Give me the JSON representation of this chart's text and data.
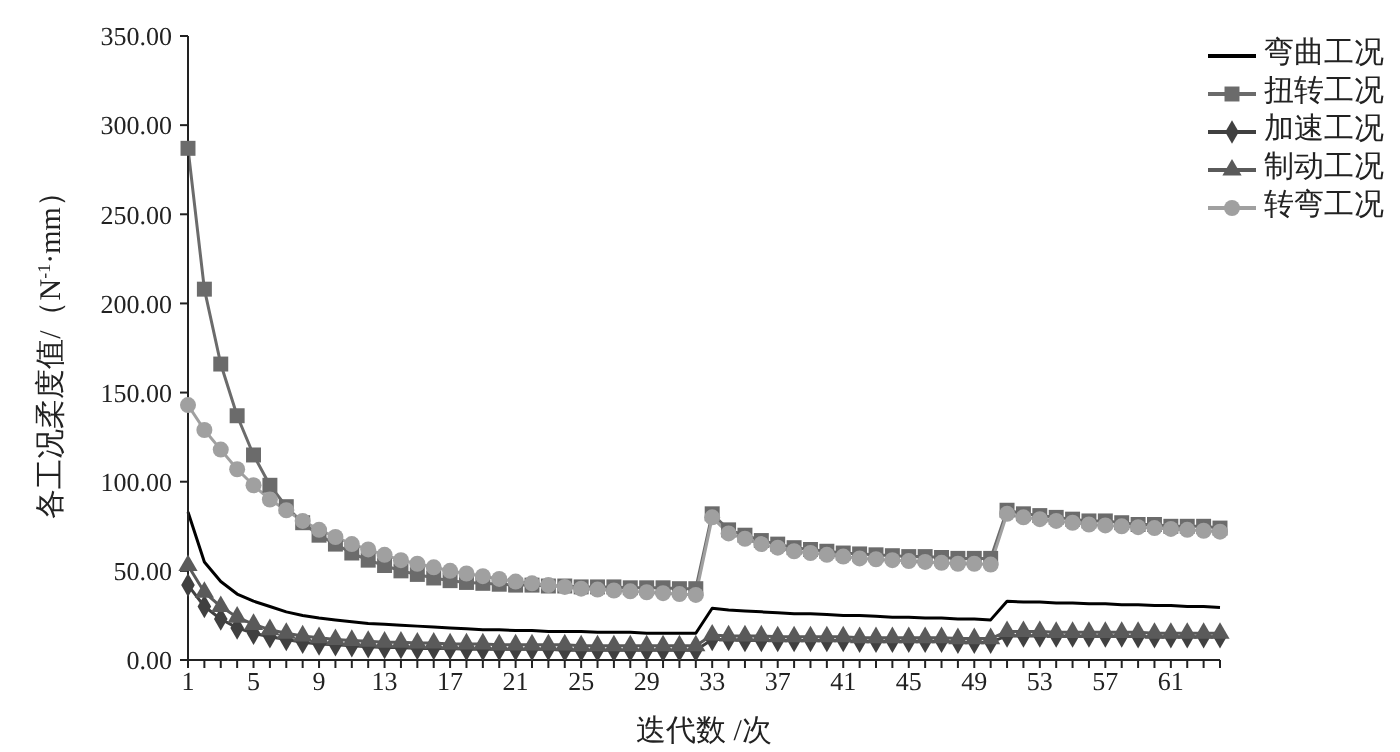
{
  "chart_data": {
    "type": "line",
    "xlabel": "迭代数 /次",
    "ylabel": "各工况柔度值/（N$^{-1}$·mm）",
    "categories": [
      "1",
      null,
      null,
      null,
      "5",
      null,
      null,
      null,
      "9",
      null,
      null,
      null,
      "13",
      null,
      null,
      null,
      "17",
      null,
      null,
      null,
      "21",
      null,
      null,
      null,
      "25",
      null,
      null,
      null,
      "29",
      null,
      null,
      null,
      "33",
      null,
      null,
      null,
      "37",
      null,
      null,
      null,
      "41",
      null,
      null,
      null,
      "45",
      null,
      null,
      null,
      "49",
      null,
      null,
      null,
      "53",
      null,
      null,
      null,
      "57",
      null,
      null,
      null,
      "61",
      null,
      null,
      null
    ],
    "ylim": [
      0,
      350
    ],
    "yticks": [
      {
        "value": 0,
        "label": "0.00"
      },
      {
        "value": 50,
        "label": "50.00"
      },
      {
        "value": 100,
        "label": "100.00"
      },
      {
        "value": 150,
        "label": "150.00"
      },
      {
        "value": 200,
        "label": "200.00"
      },
      {
        "value": 250,
        "label": "250.00"
      },
      {
        "value": 300,
        "label": "300.00"
      },
      {
        "value": 350,
        "label": "350.00"
      }
    ],
    "grid": false,
    "legend": "top right",
    "series": [
      {
        "name": "弯曲工况",
        "color": "#000000",
        "marker": "none",
        "values": [
          83,
          55,
          44,
          37,
          33,
          30,
          27,
          25,
          23.5,
          22.5,
          21.5,
          20.5,
          20,
          19.5,
          19,
          18.5,
          18,
          17.5,
          17,
          17,
          16.5,
          16.5,
          16,
          16,
          16,
          15.5,
          15.5,
          15.5,
          15,
          15,
          15,
          15,
          29,
          28,
          27.5,
          27,
          26.5,
          26,
          26,
          25.5,
          25,
          25,
          24.5,
          24,
          24,
          23.5,
          23.5,
          23,
          23,
          22.5,
          33,
          32.5,
          32.5,
          32,
          32,
          31.5,
          31.5,
          31,
          31,
          30.5,
          30.5,
          30,
          30,
          29.5
        ]
      },
      {
        "name": "扭转工况",
        "color": "#6b6b6b",
        "marker": "square",
        "values": [
          287,
          208,
          166,
          137,
          115,
          98,
          86,
          77,
          70,
          65,
          60,
          56,
          53,
          50,
          48,
          46,
          44.5,
          43.5,
          43,
          42.5,
          42,
          42,
          41.5,
          41.5,
          41,
          41,
          41,
          40.5,
          40.5,
          40.5,
          40,
          40,
          82,
          73,
          70,
          67,
          65,
          63,
          62,
          61,
          60,
          59.5,
          59,
          58.5,
          58,
          58,
          57.5,
          57,
          57,
          57,
          84,
          82,
          81,
          80,
          79,
          78,
          78,
          77,
          76,
          76,
          75,
          75,
          75,
          74
        ]
      },
      {
        "name": "加速工况",
        "color": "#404040",
        "marker": "diamond",
        "values": [
          42,
          30,
          23,
          18,
          15,
          13,
          11.5,
          10,
          9,
          8.5,
          8,
          7.5,
          7,
          7,
          6.5,
          6.5,
          6.5,
          6,
          6,
          6,
          6,
          6,
          6,
          5.5,
          5.5,
          5.5,
          5.5,
          5.5,
          5.5,
          5.5,
          5.5,
          5.5,
          11.5,
          11.5,
          11,
          11,
          11,
          11,
          11,
          11,
          11,
          10.5,
          10.5,
          10.5,
          10.5,
          10.5,
          10.5,
          10,
          10,
          10,
          13.5,
          13.5,
          13.5,
          13.5,
          13.5,
          13.5,
          13.5,
          13.5,
          13,
          13,
          13,
          13,
          13,
          13
        ]
      },
      {
        "name": "制动工况",
        "color": "#5a5a5a",
        "marker": "triangle",
        "values": [
          53,
          38,
          30,
          24,
          20,
          17,
          15,
          13.5,
          12.5,
          11.5,
          11,
          10.5,
          10,
          10,
          9.5,
          9.5,
          9,
          9,
          9,
          8.5,
          8.5,
          8.5,
          8.5,
          8.5,
          8,
          8,
          8,
          8,
          8,
          8,
          8,
          8,
          14,
          13.5,
          13.5,
          13.5,
          13,
          13,
          13,
          13,
          13,
          12.5,
          12.5,
          12.5,
          12.5,
          12.5,
          12.5,
          12,
          12,
          12,
          16,
          16,
          16,
          15.5,
          15.5,
          15.5,
          15.5,
          15.5,
          15.5,
          15,
          15,
          15,
          15,
          15
        ]
      },
      {
        "name": "转弯工况",
        "color": "#a0a0a0",
        "marker": "circle",
        "values": [
          143,
          129,
          118,
          107,
          98,
          90,
          84,
          78,
          73,
          69,
          65,
          62,
          59,
          56,
          54,
          52,
          50,
          48.5,
          47,
          45.5,
          44,
          43,
          42,
          41,
          40,
          39.5,
          39,
          38.5,
          38,
          37.5,
          37,
          36.5,
          80,
          71,
          68,
          65,
          63,
          61,
          60,
          59,
          58,
          57,
          56.5,
          56,
          55.5,
          55,
          54.5,
          54,
          54,
          53.5,
          82,
          80,
          79,
          78,
          77,
          76,
          75.5,
          75,
          74.5,
          74,
          73.5,
          73,
          72.5,
          72
        ]
      }
    ]
  }
}
